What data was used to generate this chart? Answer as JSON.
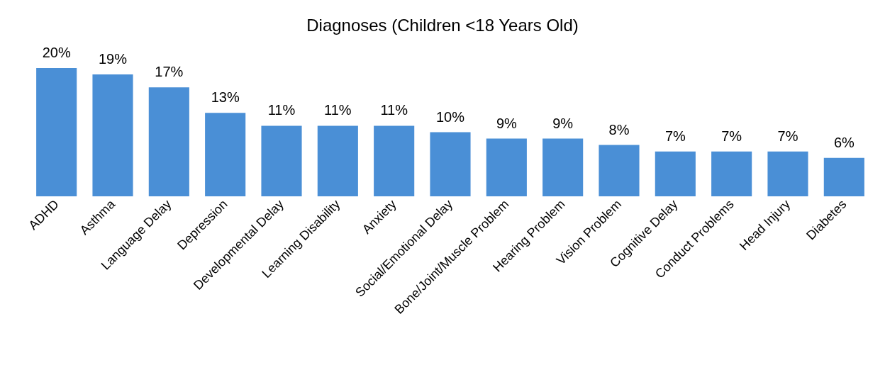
{
  "chart_data": {
    "type": "bar",
    "title": "Diagnoses (Children <18 Years Old)",
    "categories": [
      "ADHD",
      "Asthma",
      "Language Delay",
      "Depression",
      "Developmental Delay",
      "Learning Disability",
      "Anxiety",
      "Social/Emotional Delay",
      "Bone/Joint/Muscle Problem",
      "Hearing Problem",
      "Vision Problem",
      "Cognitive Delay",
      "Conduct Problems",
      "Head Injury",
      "Diabetes"
    ],
    "values": [
      20,
      19,
      17,
      13,
      11,
      11,
      11,
      10,
      9,
      9,
      8,
      7,
      7,
      7,
      6
    ],
    "value_labels": [
      "20%",
      "19%",
      "17%",
      "13%",
      "11%",
      "11%",
      "11%",
      "10%",
      "9%",
      "9%",
      "8%",
      "7%",
      "7%",
      "7%",
      "6%"
    ],
    "color": "#4a8fd6"
  }
}
